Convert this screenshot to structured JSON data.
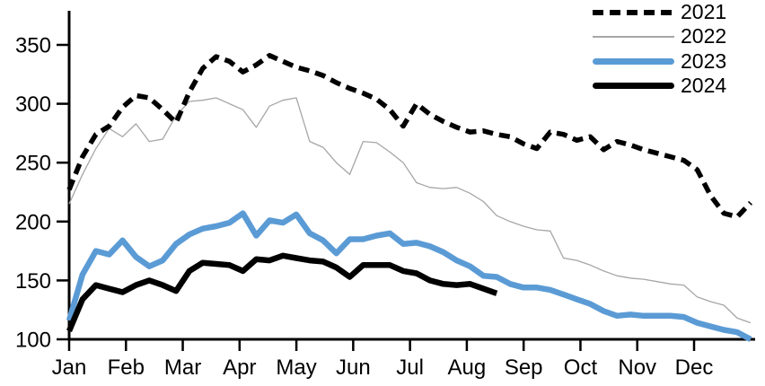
{
  "chart_data": {
    "type": "line",
    "title": "",
    "x_axis": {
      "label": "",
      "tick_labels": [
        "Jan",
        "Feb",
        "Mar",
        "Apr",
        "May",
        "Jun",
        "Jul",
        "Aug",
        "Sep",
        "Oct",
        "Nov",
        "Dec"
      ],
      "unit": "weekly data points spanning Jan through Dec"
    },
    "y_axis": {
      "label": "",
      "ticks": [
        100,
        150,
        200,
        250,
        300,
        350
      ],
      "range": [
        100,
        350
      ]
    },
    "grid": false,
    "axis_color": "#000000",
    "legend": {
      "position": "top-right"
    },
    "series": [
      {
        "name": "2021",
        "style": "dashed",
        "color": "#000000",
        "width": 5.5,
        "values": [
          227,
          255,
          274,
          281,
          297,
          307,
          305,
          295,
          284,
          310,
          330,
          340,
          336,
          327,
          333,
          341,
          336,
          331,
          328,
          324,
          318,
          313,
          309,
          304,
          295,
          281,
          300,
          291,
          285,
          280,
          276,
          277,
          274,
          272,
          266,
          262,
          276,
          274,
          269,
          272,
          261,
          268,
          265,
          261,
          258,
          255,
          252,
          244,
          222,
          207,
          204,
          216
        ]
      },
      {
        "name": "2022",
        "style": "thin",
        "color": "#A6A6A6",
        "width": 1.3,
        "values": [
          215,
          240,
          262,
          279,
          272,
          283,
          268,
          270,
          290,
          302,
          303,
          305,
          300,
          295,
          280,
          298,
          303,
          305,
          268,
          263,
          250,
          240,
          268,
          267,
          259,
          250,
          233,
          229,
          228,
          229,
          224,
          217,
          205,
          200,
          196,
          193,
          192,
          169,
          167,
          163,
          158,
          154,
          152,
          151,
          149,
          147,
          146,
          136,
          132,
          129,
          118,
          114
        ]
      },
      {
        "name": "2023",
        "style": "solid-thick",
        "color": "#5B9BD5",
        "width": 6.5,
        "values": [
          116,
          155,
          175,
          172,
          184,
          170,
          162,
          167,
          181,
          189,
          194,
          196,
          199,
          207,
          188,
          201,
          199,
          206,
          190,
          184,
          173,
          185,
          185,
          188,
          190,
          181,
          182,
          179,
          174,
          167,
          162,
          154,
          153,
          147,
          144,
          144,
          142,
          138,
          134,
          130,
          124,
          120,
          121,
          120,
          120,
          120,
          119,
          114,
          111,
          108,
          106,
          100
        ]
      },
      {
        "name": "2024",
        "style": "solid-thick",
        "color": "#000000",
        "width": 6.5,
        "values": [
          107,
          134,
          146,
          143,
          140,
          146,
          150,
          146,
          141,
          158,
          165,
          164,
          163,
          158,
          168,
          167,
          171,
          169,
          167,
          166,
          161,
          153,
          163,
          163,
          163,
          158,
          156,
          150,
          147,
          146,
          147,
          143,
          139
        ]
      }
    ]
  }
}
